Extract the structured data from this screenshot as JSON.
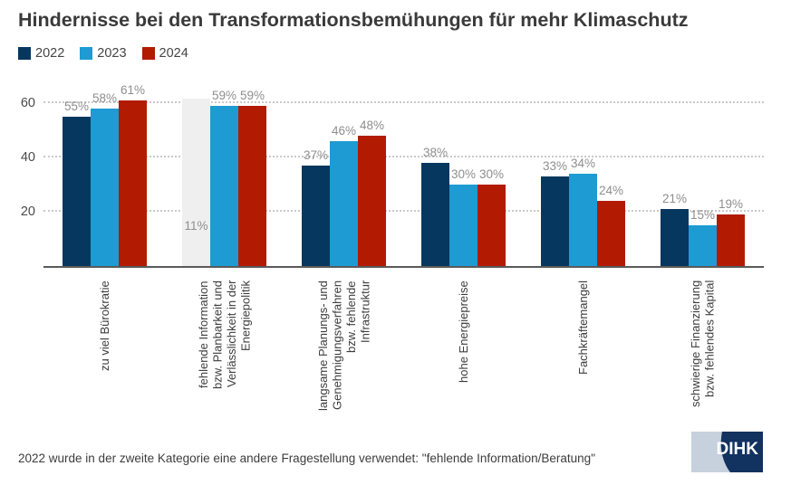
{
  "title": "Hindernisse bei den Transformationsbemühungen für mehr Klimaschutz",
  "footnote": "2022 wurde in der zweite Kategorie eine andere Fragestellung verwendet: \"fehlende Information/Beratung\"",
  "logo": {
    "text": "DIHK",
    "navy": "#12325f",
    "light": "#c7d0dd"
  },
  "colors": {
    "background": "#ffffff",
    "title_text": "#3a3a3a",
    "value_label": "#8e8e8e",
    "axis_line": "#5a5a5a",
    "gridline": "#c9c9c9",
    "tick_label": "#4a4a4a",
    "category_label": "#3d3d3d",
    "highlight_column": "#efefef"
  },
  "chart_data": {
    "type": "bar",
    "unit": "%",
    "categories": [
      "zu viel Bürokratie",
      "fehlende Information\nbzw. Planbarkeit und\nVerlässlichkeit in der\nEnergiepolitik",
      "langsame Planungs- und\nGenehmigungsverfahren\nbzw. fehlende\nInfrastruktur",
      "hohe Energiepreise",
      "Fachkräftemangel",
      "schwierige Finanzierung\nbzw. fehlendes Kapital"
    ],
    "series": [
      {
        "name": "2022",
        "color": "#06375f",
        "values": [
          55,
          11,
          37,
          38,
          33,
          21
        ]
      },
      {
        "name": "2023",
        "color": "#1d9bd2",
        "values": [
          58,
          59,
          46,
          30,
          34,
          15
        ]
      },
      {
        "name": "2024",
        "color": "#b21b02",
        "values": [
          61,
          59,
          48,
          30,
          24,
          19
        ]
      }
    ],
    "yticks": [
      20,
      40,
      60
    ],
    "ylim": [
      0,
      62
    ],
    "grid": "horizontal-dotted",
    "legend_position": "top-left",
    "value_labels": "percent-above-bars",
    "highlight": {
      "category_index": 1,
      "series_index": 0,
      "reason": "see footnote: different question in 2022"
    }
  }
}
